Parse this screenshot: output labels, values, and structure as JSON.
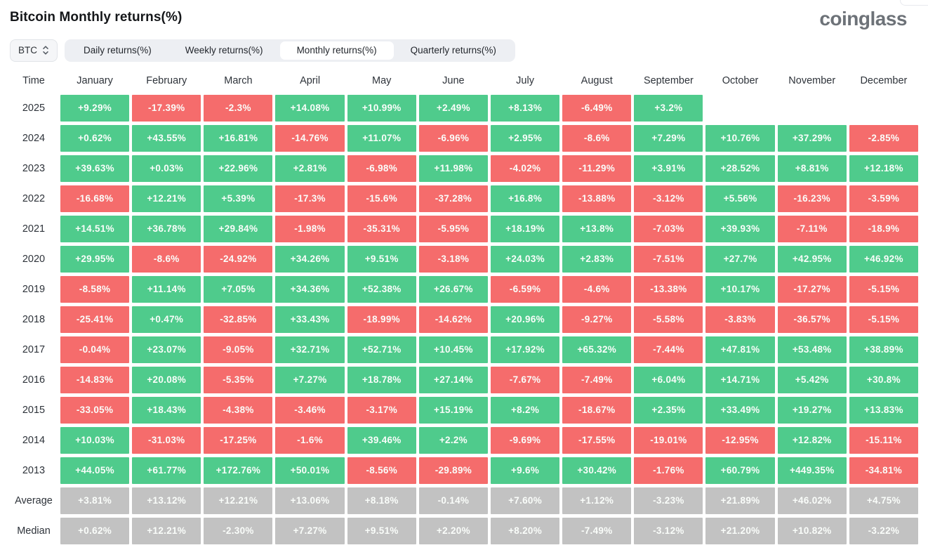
{
  "header": {
    "title": "Bitcoin Monthly returns(%)",
    "brand": "coinglass"
  },
  "controls": {
    "coin_selector": {
      "label": "BTC"
    },
    "tabs": [
      {
        "label": "Daily returns(%)",
        "active": false
      },
      {
        "label": "Weekly returns(%)",
        "active": false
      },
      {
        "label": "Monthly returns(%)",
        "active": true
      },
      {
        "label": "Quarterly returns(%)",
        "active": false
      }
    ]
  },
  "colors": {
    "positive": "#4fcb8c",
    "negative": "#f56c6c",
    "neutral": "#c2c2c2"
  },
  "chart_data": {
    "type": "heatmap",
    "title": "Bitcoin Monthly returns(%)",
    "legend_position": "none",
    "columns": [
      "Time",
      "January",
      "February",
      "March",
      "April",
      "May",
      "June",
      "July",
      "August",
      "September",
      "October",
      "November",
      "December"
    ],
    "rows": [
      {
        "label": "2025",
        "neutral": false,
        "values": [
          "+9.29%",
          "-17.39%",
          "-2.3%",
          "+14.08%",
          "+10.99%",
          "+2.49%",
          "+8.13%",
          "-6.49%",
          "+3.2%",
          null,
          null,
          null
        ]
      },
      {
        "label": "2024",
        "neutral": false,
        "values": [
          "+0.62%",
          "+43.55%",
          "+16.81%",
          "-14.76%",
          "+11.07%",
          "-6.96%",
          "+2.95%",
          "-8.6%",
          "+7.29%",
          "+10.76%",
          "+37.29%",
          "-2.85%"
        ]
      },
      {
        "label": "2023",
        "neutral": false,
        "values": [
          "+39.63%",
          "+0.03%",
          "+22.96%",
          "+2.81%",
          "-6.98%",
          "+11.98%",
          "-4.02%",
          "-11.29%",
          "+3.91%",
          "+28.52%",
          "+8.81%",
          "+12.18%"
        ]
      },
      {
        "label": "2022",
        "neutral": false,
        "values": [
          "-16.68%",
          "+12.21%",
          "+5.39%",
          "-17.3%",
          "-15.6%",
          "-37.28%",
          "+16.8%",
          "-13.88%",
          "-3.12%",
          "+5.56%",
          "-16.23%",
          "-3.59%"
        ]
      },
      {
        "label": "2021",
        "neutral": false,
        "values": [
          "+14.51%",
          "+36.78%",
          "+29.84%",
          "-1.98%",
          "-35.31%",
          "-5.95%",
          "+18.19%",
          "+13.8%",
          "-7.03%",
          "+39.93%",
          "-7.11%",
          "-18.9%"
        ]
      },
      {
        "label": "2020",
        "neutral": false,
        "values": [
          "+29.95%",
          "-8.6%",
          "-24.92%",
          "+34.26%",
          "+9.51%",
          "-3.18%",
          "+24.03%",
          "+2.83%",
          "-7.51%",
          "+27.7%",
          "+42.95%",
          "+46.92%"
        ]
      },
      {
        "label": "2019",
        "neutral": false,
        "values": [
          "-8.58%",
          "+11.14%",
          "+7.05%",
          "+34.36%",
          "+52.38%",
          "+26.67%",
          "-6.59%",
          "-4.6%",
          "-13.38%",
          "+10.17%",
          "-17.27%",
          "-5.15%"
        ]
      },
      {
        "label": "2018",
        "neutral": false,
        "values": [
          "-25.41%",
          "+0.47%",
          "-32.85%",
          "+33.43%",
          "-18.99%",
          "-14.62%",
          "+20.96%",
          "-9.27%",
          "-5.58%",
          "-3.83%",
          "-36.57%",
          "-5.15%"
        ]
      },
      {
        "label": "2017",
        "neutral": false,
        "values": [
          "-0.04%",
          "+23.07%",
          "-9.05%",
          "+32.71%",
          "+52.71%",
          "+10.45%",
          "+17.92%",
          "+65.32%",
          "-7.44%",
          "+47.81%",
          "+53.48%",
          "+38.89%"
        ]
      },
      {
        "label": "2016",
        "neutral": false,
        "values": [
          "-14.83%",
          "+20.08%",
          "-5.35%",
          "+7.27%",
          "+18.78%",
          "+27.14%",
          "-7.67%",
          "-7.49%",
          "+6.04%",
          "+14.71%",
          "+5.42%",
          "+30.8%"
        ]
      },
      {
        "label": "2015",
        "neutral": false,
        "values": [
          "-33.05%",
          "+18.43%",
          "-4.38%",
          "-3.46%",
          "-3.17%",
          "+15.19%",
          "+8.2%",
          "-18.67%",
          "+2.35%",
          "+33.49%",
          "+19.27%",
          "+13.83%"
        ]
      },
      {
        "label": "2014",
        "neutral": false,
        "values": [
          "+10.03%",
          "-31.03%",
          "-17.25%",
          "-1.6%",
          "+39.46%",
          "+2.2%",
          "-9.69%",
          "-17.55%",
          "-19.01%",
          "-12.95%",
          "+12.82%",
          "-15.11%"
        ]
      },
      {
        "label": "2013",
        "neutral": false,
        "values": [
          "+44.05%",
          "+61.77%",
          "+172.76%",
          "+50.01%",
          "-8.56%",
          "-29.89%",
          "+9.6%",
          "+30.42%",
          "-1.76%",
          "+60.79%",
          "+449.35%",
          "-34.81%"
        ]
      },
      {
        "label": "Average",
        "neutral": true,
        "values": [
          "+3.81%",
          "+13.12%",
          "+12.21%",
          "+13.06%",
          "+8.18%",
          "-0.14%",
          "+7.60%",
          "+1.12%",
          "-3.23%",
          "+21.89%",
          "+46.02%",
          "+4.75%"
        ]
      },
      {
        "label": "Median",
        "neutral": true,
        "values": [
          "+0.62%",
          "+12.21%",
          "-2.30%",
          "+7.27%",
          "+9.51%",
          "+2.20%",
          "+8.20%",
          "-7.49%",
          "-3.12%",
          "+21.20%",
          "+10.82%",
          "-3.22%"
        ]
      }
    ]
  }
}
